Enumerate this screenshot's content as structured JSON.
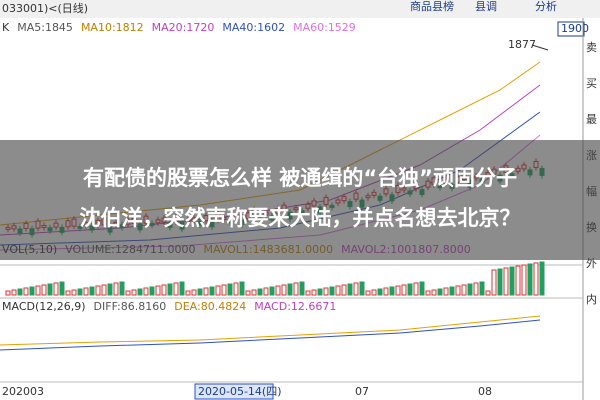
{
  "header": {
    "code": "033001)<(日线)",
    "menu": [
      "商品县榜",
      "县调",
      "分析"
    ],
    "price_box": "1900"
  },
  "main_panel": {
    "legend": [
      "K",
      "MA5:1845",
      "MA10:1812",
      "MA20:1720",
      "MA40:1602",
      "MA60:1529"
    ],
    "high_label": "1877"
  },
  "sidebar": [
    "卖",
    "买",
    "最",
    "涨",
    "幅",
    "换",
    "外",
    "内"
  ],
  "overlay": {
    "line1": "有配债的股票怎么样 被通缉的“台独”顽固分子",
    "line2": "沈伯洋，突然声称要来大陆，并点名想去北京？"
  },
  "volume_panel": {
    "legend": [
      "VOL(5,10)",
      "VOLUME:1284711.0000",
      "MAVOL1:1483681.0000",
      "MAVOL2:1001807.8000"
    ]
  },
  "macd_panel": {
    "legend": [
      "MACD(12,26,9)",
      "DIFF:86.8160",
      "DEA:80.4824",
      "MACD:12.6671"
    ]
  },
  "x_axis": [
    "202003",
    "2020-05-14(四)",
    "07",
    "08"
  ]
}
